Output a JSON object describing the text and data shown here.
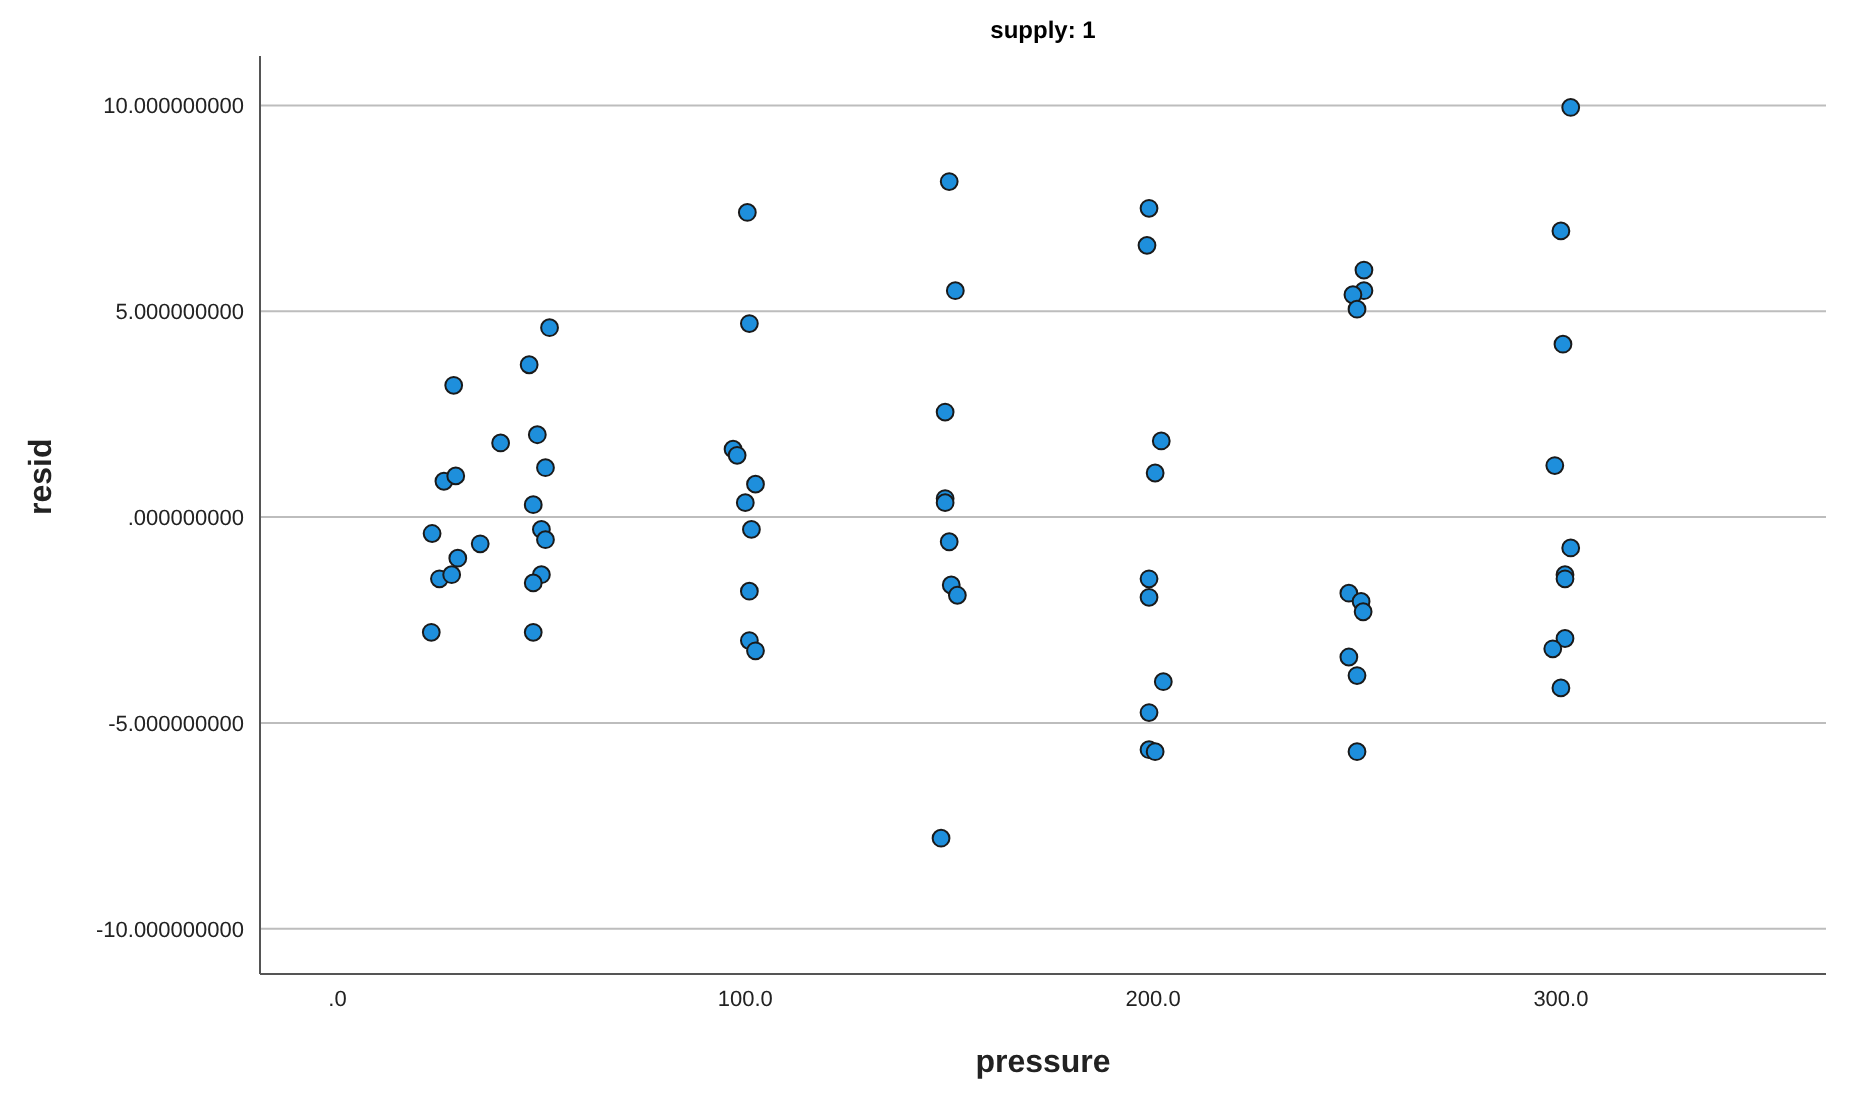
{
  "chart_data": {
    "type": "scatter",
    "title": "supply: 1",
    "xlabel": "pressure",
    "ylabel": "resid",
    "xlim": [
      -19,
      365
    ],
    "xticks": [
      {
        "value": 0,
        "label": ".0"
      },
      {
        "value": 100,
        "label": "100.0"
      },
      {
        "value": 200,
        "label": "200.0"
      },
      {
        "value": 300,
        "label": "300.0"
      }
    ],
    "ylim": [
      -11.1,
      11.2
    ],
    "yticks": [
      {
        "value": -10,
        "label": "-10.000000000"
      },
      {
        "value": -5,
        "label": "-5.000000000"
      },
      {
        "value": 0,
        "label": ".000000000"
      },
      {
        "value": 5,
        "label": "5.000000000"
      },
      {
        "value": 10,
        "label": "10.000000000"
      }
    ],
    "grid": "y",
    "legend": false,
    "marker": "circle",
    "series": [
      {
        "color": "#1e8fdc",
        "x": [
          23.2,
          26.1,
          29,
          28.5,
          25,
          28,
          29.5,
          35,
          40,
          23,
          47,
          49,
          48,
          51,
          52,
          50,
          51,
          50,
          48,
          48,
          100.5,
          101,
          97,
          98,
          102.5,
          100,
          101.5,
          101,
          101,
          102.5,
          150,
          151.5,
          149,
          149,
          149,
          150,
          150.5,
          152,
          148,
          199,
          198.5,
          202,
          200.5,
          199,
          199,
          202.5,
          199,
          199,
          200.5,
          251.7,
          251.7,
          249,
          250,
          248,
          251,
          251.5,
          248,
          250,
          250,
          302.4,
          300,
          300.5,
          298.5,
          302.4,
          301,
          301,
          301,
          298,
          300
        ],
        "values": [
          -0.4,
          0.87,
          1.0,
          3.2,
          -1.5,
          -1.4,
          -1.0,
          -0.65,
          1.8,
          -2.8,
          3.7,
          2.0,
          0.3,
          1.2,
          4.6,
          -0.3,
          -0.55,
          -1.4,
          -1.6,
          -2.8,
          7.4,
          4.7,
          1.65,
          1.5,
          0.8,
          0.35,
          -0.3,
          -1.8,
          -3.0,
          -3.25,
          8.15,
          5.5,
          2.55,
          0.45,
          0.35,
          -0.6,
          -1.65,
          -1.9,
          -7.8,
          7.5,
          6.6,
          1.85,
          1.07,
          -1.5,
          -1.95,
          -4.0,
          -4.75,
          -5.65,
          -5.7,
          6.0,
          5.5,
          5.4,
          5.05,
          -1.85,
          -2.05,
          -2.3,
          -3.4,
          -3.85,
          -5.7,
          9.95,
          6.95,
          4.2,
          1.25,
          -0.75,
          -1.4,
          -1.5,
          -2.95,
          -3.2,
          -4.15
        ]
      }
    ]
  }
}
